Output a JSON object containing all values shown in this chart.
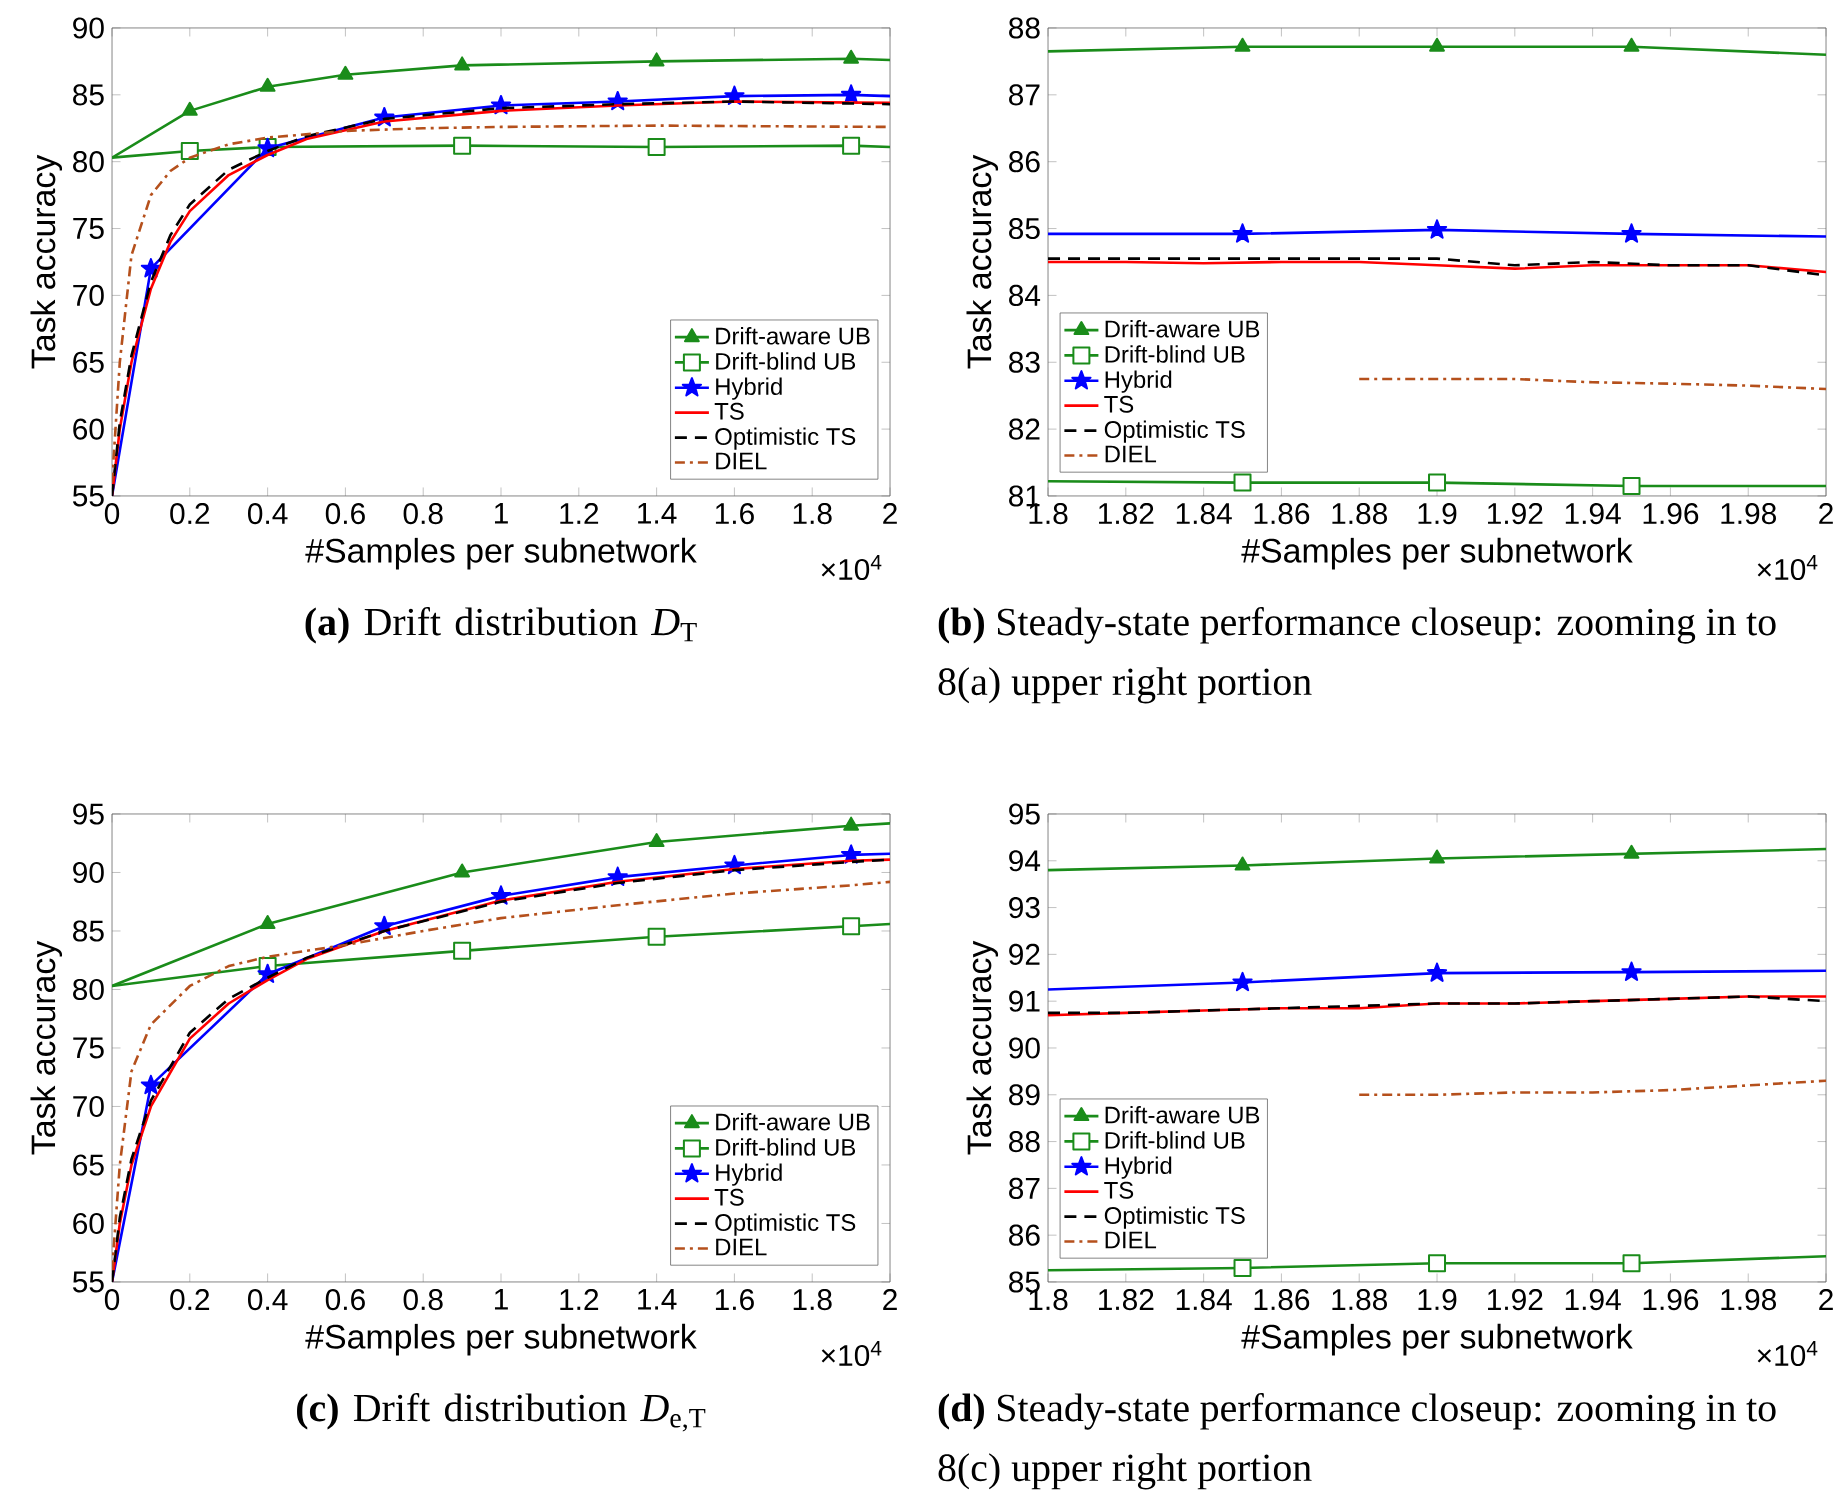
{
  "chart_data": [
    {
      "type": "line",
      "title": "**(a)** Drift distribution *D*$_{T}$",
      "xlabel": "#Samples per subnetwork",
      "ylabel": "Task accuracy",
      "annotations": [
        "×10$^{4}$"
      ],
      "xlim": [
        0,
        2
      ],
      "xticks": [
        0,
        0.2,
        0.4,
        0.6,
        0.8,
        1,
        1.2,
        1.4,
        1.6,
        1.8,
        2
      ],
      "ylim": [
        55,
        90
      ],
      "yticks": [
        55,
        60,
        65,
        70,
        75,
        80,
        85,
        90
      ],
      "legend": "bottom right",
      "series": [
        {
          "name": "Drift-aware UB",
          "color": "#1a8c1a",
          "marker": "triangle",
          "line_style": "solid",
          "x": [
            0,
            0.2,
            0.4,
            0.6,
            0.9,
            1.4,
            1.9,
            2
          ],
          "values": [
            80.3,
            83.8,
            85.6,
            86.5,
            87.2,
            87.5,
            87.7,
            87.6
          ]
        },
        {
          "name": "Drift-blind UB",
          "color": "#1a8c1a",
          "marker": "square",
          "line_style": "solid",
          "x": [
            0,
            0.2,
            0.4,
            0.9,
            1.4,
            1.9,
            2
          ],
          "values": [
            80.3,
            80.8,
            81.1,
            81.2,
            81.1,
            81.2,
            81.1
          ]
        },
        {
          "name": "Hybrid",
          "color": "#0000ff",
          "marker": "star",
          "line_style": "solid",
          "x": [
            0,
            0.1,
            0.4,
            0.7,
            1,
            1.3,
            1.6,
            1.9,
            2
          ],
          "values": [
            55,
            72,
            81,
            83.3,
            84.2,
            84.5,
            84.9,
            85,
            84.9
          ]
        },
        {
          "name": "TS",
          "color": "#ff0000",
          "marker": "none",
          "line_style": "solid",
          "x": [
            0,
            0.02,
            0.05,
            0.1,
            0.15,
            0.2,
            0.3,
            0.4,
            0.5,
            0.7,
            1,
            1.3,
            1.6,
            2
          ],
          "values": [
            55,
            60,
            65,
            70.5,
            74,
            76.3,
            79,
            80.5,
            81.7,
            83,
            83.8,
            84.2,
            84.5,
            84.4
          ]
        },
        {
          "name": "Optimistic TS",
          "color": "#000000",
          "marker": "none",
          "line_style": "dashed",
          "x": [
            0,
            0.02,
            0.05,
            0.1,
            0.15,
            0.2,
            0.3,
            0.4,
            0.5,
            0.7,
            1,
            1.3,
            1.6,
            2
          ],
          "values": [
            55,
            60.5,
            65.5,
            71,
            74.5,
            76.8,
            79.4,
            80.8,
            81.9,
            83.2,
            84,
            84.3,
            84.5,
            84.3
          ]
        },
        {
          "name": "DIEL",
          "color": "#b5501c",
          "marker": "none",
          "line_style": "dashdot",
          "x": [
            0,
            0.02,
            0.05,
            0.1,
            0.15,
            0.2,
            0.3,
            0.4,
            0.6,
            0.8,
            1,
            1.4,
            2
          ],
          "values": [
            56,
            65,
            73,
            77.5,
            79.3,
            80.3,
            81.3,
            81.8,
            82.3,
            82.5,
            82.6,
            82.7,
            82.6
          ]
        }
      ]
    },
    {
      "type": "line",
      "title": "**(b)** Steady-state performance closeup: zooming in to 8(a) upper right portion",
      "xlabel": "#Samples per subnetwork",
      "ylabel": "Task accuracy",
      "annotations": [
        "×10$^{4}$"
      ],
      "xlim": [
        1.8,
        2
      ],
      "xticks": [
        1.8,
        1.82,
        1.84,
        1.86,
        1.88,
        1.9,
        1.92,
        1.94,
        1.96,
        1.98,
        2
      ],
      "ylim": [
        81,
        88
      ],
      "yticks": [
        81,
        82,
        83,
        84,
        85,
        86,
        87,
        88
      ],
      "legend": "bottom left",
      "series": [
        {
          "name": "Drift-aware UB",
          "color": "#1a8c1a",
          "marker": "triangle",
          "line_style": "solid",
          "x": [
            1.8,
            1.85,
            1.9,
            1.95,
            2
          ],
          "values": [
            87.65,
            87.72,
            87.72,
            87.72,
            87.6
          ]
        },
        {
          "name": "Drift-blind UB",
          "color": "#1a8c1a",
          "marker": "square",
          "line_style": "solid",
          "x": [
            1.8,
            1.85,
            1.9,
            1.95,
            2
          ],
          "values": [
            81.22,
            81.2,
            81.2,
            81.15,
            81.15
          ]
        },
        {
          "name": "Hybrid",
          "color": "#0000ff",
          "marker": "star",
          "line_style": "solid",
          "x": [
            1.8,
            1.85,
            1.9,
            1.95,
            2
          ],
          "values": [
            84.92,
            84.92,
            84.98,
            84.92,
            84.88
          ]
        },
        {
          "name": "TS",
          "color": "#ff0000",
          "marker": "none",
          "line_style": "solid",
          "x": [
            1.8,
            1.82,
            1.84,
            1.86,
            1.88,
            1.9,
            1.92,
            1.94,
            1.96,
            1.98,
            2
          ],
          "values": [
            84.5,
            84.5,
            84.48,
            84.5,
            84.5,
            84.45,
            84.4,
            84.45,
            84.45,
            84.45,
            84.35
          ]
        },
        {
          "name": "Optimistic TS",
          "color": "#000000",
          "marker": "none",
          "line_style": "dashed",
          "x": [
            1.8,
            1.82,
            1.84,
            1.86,
            1.88,
            1.9,
            1.92,
            1.94,
            1.96,
            1.98,
            2
          ],
          "values": [
            84.55,
            84.55,
            84.55,
            84.55,
            84.55,
            84.55,
            84.45,
            84.5,
            84.45,
            84.45,
            84.3
          ]
        },
        {
          "name": "DIEL",
          "color": "#b5501c",
          "marker": "none",
          "line_style": "dashdot",
          "x": [
            1.88,
            1.9,
            1.92,
            1.94,
            1.96,
            1.98,
            2
          ],
          "values": [
            82.75,
            82.75,
            82.75,
            82.7,
            82.68,
            82.65,
            82.6
          ]
        }
      ]
    },
    {
      "type": "line",
      "title": "**(c)** Drift distribution *D*$_{e,T}$",
      "xlabel": "#Samples per subnetwork",
      "ylabel": "Task accuracy",
      "annotations": [
        "×10$^{4}$"
      ],
      "xlim": [
        0,
        2
      ],
      "xticks": [
        0,
        0.2,
        0.4,
        0.6,
        0.8,
        1,
        1.2,
        1.4,
        1.6,
        1.8,
        2
      ],
      "ylim": [
        55,
        95
      ],
      "yticks": [
        55,
        60,
        65,
        70,
        75,
        80,
        85,
        90,
        95
      ],
      "legend": "bottom right",
      "series": [
        {
          "name": "Drift-aware UB",
          "color": "#1a8c1a",
          "marker": "triangle",
          "line_style": "solid",
          "x": [
            0,
            0.4,
            0.9,
            1.4,
            1.9,
            2
          ],
          "values": [
            80.3,
            85.6,
            90,
            92.6,
            94,
            94.2
          ]
        },
        {
          "name": "Drift-blind UB",
          "color": "#1a8c1a",
          "marker": "square",
          "line_style": "solid",
          "x": [
            0,
            0.4,
            0.9,
            1.4,
            1.9,
            2
          ],
          "values": [
            80.3,
            82,
            83.3,
            84.5,
            85.4,
            85.6
          ]
        },
        {
          "name": "Hybrid",
          "color": "#0000ff",
          "marker": "star",
          "line_style": "solid",
          "x": [
            0,
            0.1,
            0.4,
            0.7,
            1,
            1.3,
            1.6,
            1.9,
            2
          ],
          "values": [
            55,
            71.8,
            81.3,
            85.4,
            88,
            89.6,
            90.6,
            91.5,
            91.6
          ]
        },
        {
          "name": "TS",
          "color": "#ff0000",
          "marker": "none",
          "line_style": "solid",
          "x": [
            0,
            0.02,
            0.05,
            0.1,
            0.2,
            0.3,
            0.4,
            0.5,
            0.7,
            1,
            1.3,
            1.6,
            1.9,
            2
          ],
          "values": [
            55,
            60,
            65,
            70,
            75.8,
            78.8,
            80.8,
            82.6,
            85,
            87.6,
            89.2,
            90.3,
            91,
            91.1
          ]
        },
        {
          "name": "Optimistic TS",
          "color": "#000000",
          "marker": "none",
          "line_style": "dashed",
          "x": [
            0,
            0.02,
            0.05,
            0.1,
            0.2,
            0.3,
            0.4,
            0.5,
            0.7,
            1,
            1.3,
            1.6,
            1.9,
            2
          ],
          "values": [
            55,
            60.5,
            65.5,
            70.5,
            76.3,
            79.2,
            81,
            82.7,
            85,
            87.5,
            89.1,
            90.2,
            90.9,
            91.1
          ]
        },
        {
          "name": "DIEL",
          "color": "#b5501c",
          "marker": "none",
          "line_style": "dashdot",
          "x": [
            0,
            0.02,
            0.05,
            0.1,
            0.2,
            0.3,
            0.4,
            0.6,
            0.8,
            1,
            1.3,
            1.6,
            1.9,
            2
          ],
          "values": [
            56,
            65,
            73,
            77,
            80.3,
            82,
            82.8,
            83.8,
            85,
            86.1,
            87.2,
            88.2,
            88.9,
            89.2
          ]
        }
      ]
    },
    {
      "type": "line",
      "title": "**(d)** Steady-state performance closeup: zooming in to 8(c) upper right portion",
      "xlabel": "#Samples per subnetwork",
      "ylabel": "Task accuracy",
      "annotations": [
        "×10$^{4}$"
      ],
      "xlim": [
        1.8,
        2
      ],
      "xticks": [
        1.8,
        1.82,
        1.84,
        1.86,
        1.88,
        1.9,
        1.92,
        1.94,
        1.96,
        1.98,
        2
      ],
      "ylim": [
        85,
        95
      ],
      "yticks": [
        85,
        86,
        87,
        88,
        89,
        90,
        91,
        92,
        93,
        94,
        95
      ],
      "legend": "bottom left",
      "series": [
        {
          "name": "Drift-aware UB",
          "color": "#1a8c1a",
          "marker": "triangle",
          "line_style": "solid",
          "x": [
            1.8,
            1.85,
            1.9,
            1.95,
            2
          ],
          "values": [
            93.8,
            93.9,
            94.05,
            94.15,
            94.25
          ]
        },
        {
          "name": "Drift-blind UB",
          "color": "#1a8c1a",
          "marker": "square",
          "line_style": "solid",
          "x": [
            1.8,
            1.85,
            1.9,
            1.95,
            2
          ],
          "values": [
            85.25,
            85.3,
            85.4,
            85.4,
            85.55
          ]
        },
        {
          "name": "Hybrid",
          "color": "#0000ff",
          "marker": "star",
          "line_style": "solid",
          "x": [
            1.8,
            1.85,
            1.9,
            1.95,
            2
          ],
          "values": [
            91.25,
            91.4,
            91.6,
            91.62,
            91.65
          ]
        },
        {
          "name": "TS",
          "color": "#ff0000",
          "marker": "none",
          "line_style": "solid",
          "x": [
            1.8,
            1.82,
            1.84,
            1.86,
            1.88,
            1.9,
            1.92,
            1.94,
            1.96,
            1.98,
            2
          ],
          "values": [
            90.7,
            90.75,
            90.8,
            90.85,
            90.85,
            90.95,
            90.95,
            91,
            91.05,
            91.1,
            91.1
          ]
        },
        {
          "name": "Optimistic TS",
          "color": "#000000",
          "marker": "none",
          "line_style": "dashed",
          "x": [
            1.8,
            1.82,
            1.84,
            1.86,
            1.88,
            1.9,
            1.92,
            1.94,
            1.96,
            1.98,
            2
          ],
          "values": [
            90.75,
            90.75,
            90.8,
            90.85,
            90.9,
            90.95,
            90.95,
            91,
            91.05,
            91.1,
            91
          ]
        },
        {
          "name": "DIEL",
          "color": "#b5501c",
          "marker": "none",
          "line_style": "dashdot",
          "x": [
            1.88,
            1.9,
            1.92,
            1.94,
            1.96,
            1.98,
            2
          ],
          "values": [
            89,
            89,
            89.05,
            89.05,
            89.1,
            89.2,
            89.3
          ]
        }
      ]
    }
  ]
}
